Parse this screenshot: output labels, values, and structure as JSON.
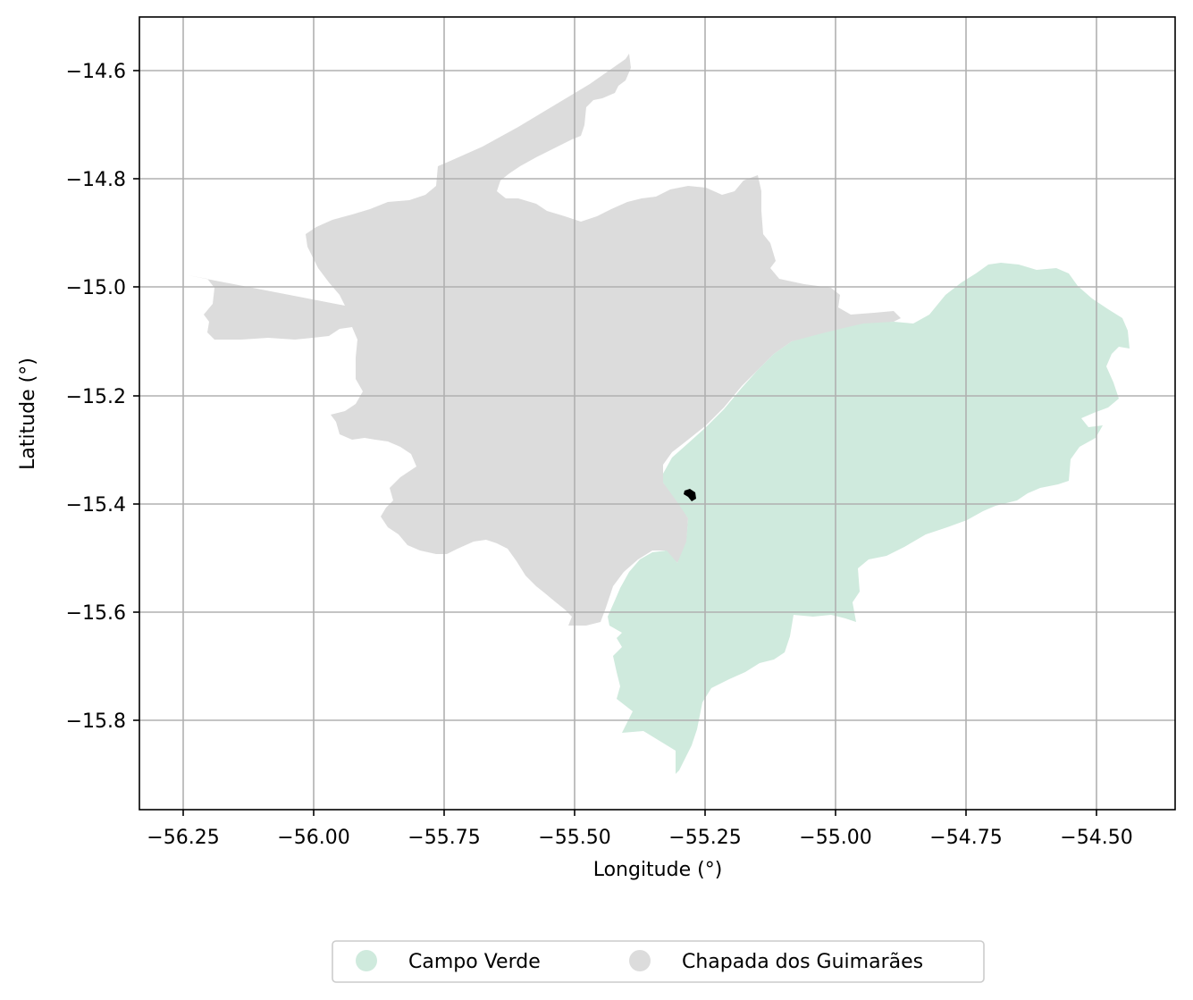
{
  "map": {
    "xlabel": "Longitude (°)",
    "ylabel": "Latitude (°)",
    "x_ticks": [
      "−56.25",
      "−56.00",
      "−55.75",
      "−55.50",
      "−55.25",
      "−55.00",
      "−54.75",
      "−54.50"
    ],
    "y_ticks": [
      "−14.6",
      "−14.8",
      "−15.0",
      "−15.2",
      "−15.4",
      "−15.6",
      "−15.8"
    ],
    "legend": [
      {
        "label": "Campo Verde",
        "color": "#cfeadd"
      },
      {
        "label": "Chapada dos Guimarães",
        "color": "#dcdcdc"
      }
    ],
    "grid": true,
    "legend_position": "bottom-center",
    "marker_color": "#000000"
  }
}
